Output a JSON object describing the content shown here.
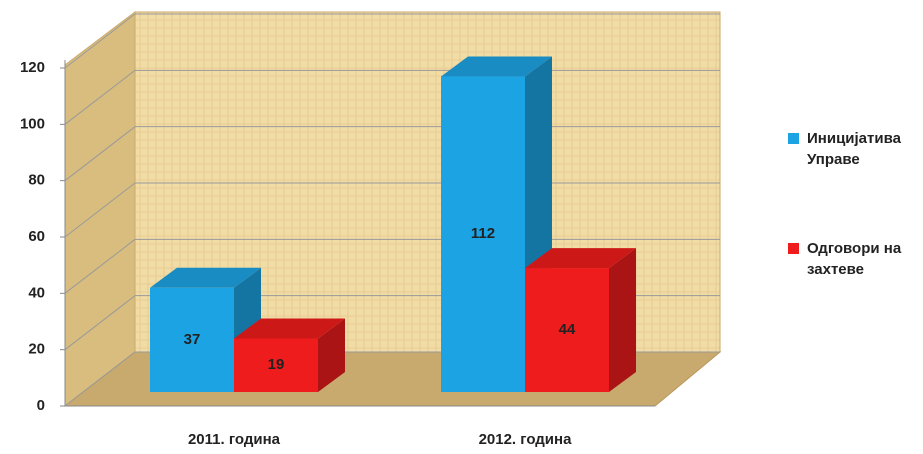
{
  "chart_data": {
    "type": "bar3d",
    "categories": [
      "2011. година",
      "2012. година"
    ],
    "series": [
      {
        "name": "Иницијатива Управе",
        "color": "#1ca3e3",
        "values": [
          37,
          112
        ]
      },
      {
        "name": "Одговори на захтеве",
        "color": "#ee1c1c",
        "values": [
          19,
          44
        ]
      }
    ],
    "ylim": [
      0,
      120
    ],
    "yticks": [
      0,
      20,
      40,
      60,
      80,
      100,
      120
    ],
    "grid": true,
    "legend": "right"
  }
}
